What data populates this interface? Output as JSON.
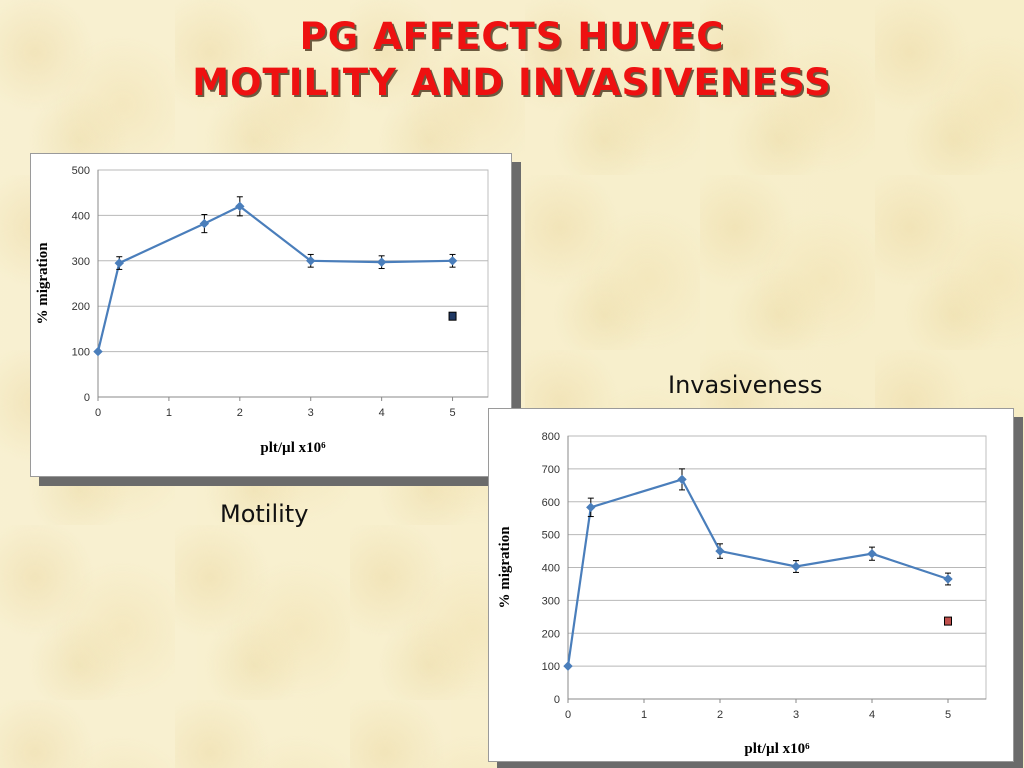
{
  "slide": {
    "title_line1": "PG AFFECTS HUVEC",
    "title_line2": "MOTILITY AND INVASIVENESS",
    "title_color": "#ee1111"
  },
  "chart_data": [
    {
      "type": "line",
      "caption": "Motility",
      "xlabel": "plt/µl x10⁶",
      "ylabel": "% migration",
      "xlim": [
        0,
        5.5
      ],
      "ylim": [
        0,
        500
      ],
      "xticks": [
        0,
        1,
        2,
        3,
        4,
        5
      ],
      "yticks": [
        0,
        100,
        200,
        300,
        400,
        500
      ],
      "grid": true,
      "series": [
        {
          "color": "#4a7ebb",
          "x": [
            0,
            0.3,
            1.5,
            2,
            3,
            4,
            5
          ],
          "y": [
            100,
            295,
            382,
            420,
            300,
            297,
            300
          ],
          "err": [
            0,
            14,
            20,
            21,
            14,
            14,
            14
          ]
        }
      ],
      "extra_points": [
        {
          "x": 5,
          "y": 178,
          "color": "#1f3864"
        }
      ]
    },
    {
      "type": "line",
      "caption": "Invasiveness",
      "xlabel": "plt/µl x10⁶",
      "ylabel": "% migration",
      "xlim": [
        0,
        5.5
      ],
      "ylim": [
        0,
        800
      ],
      "xticks": [
        0,
        1,
        2,
        3,
        4,
        5
      ],
      "yticks": [
        0,
        100,
        200,
        300,
        400,
        500,
        600,
        700,
        800
      ],
      "grid": true,
      "series": [
        {
          "color": "#4a7ebb",
          "x": [
            0,
            0.3,
            1.5,
            2,
            3,
            4,
            5
          ],
          "y": [
            100,
            583,
            668,
            450,
            403,
            442,
            365
          ],
          "err": [
            0,
            28,
            32,
            22,
            18,
            20,
            18
          ]
        }
      ],
      "extra_points": [
        {
          "x": 5,
          "y": 237,
          "color": "#c0504d"
        }
      ]
    }
  ]
}
